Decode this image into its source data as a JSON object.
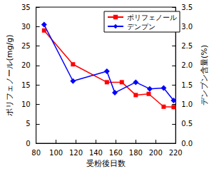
{
  "chart_data": {
    "type": "line",
    "x_label": "受粉後日数",
    "y_label": "ポリフェノール(mg/g)",
    "y2_label": "デンプン含量(%)",
    "xlim": [
      80,
      220
    ],
    "xticks": [
      80,
      100,
      120,
      140,
      160,
      180,
      200,
      220
    ],
    "ylim": [
      0,
      35
    ],
    "yticks": [
      0,
      5,
      10,
      15,
      20,
      25,
      30,
      35
    ],
    "y2lim": [
      0,
      3.5
    ],
    "y2ticks": [
      {
        "value": 0,
        "label": "0.0"
      },
      0.5,
      {
        "value": 1,
        "label": "1.0"
      },
      1.5,
      {
        "value": 2,
        "label": "2.0"
      },
      2.5,
      {
        "value": 3,
        "label": "3.0"
      },
      3.5
    ],
    "grid": false,
    "legend": "upper right",
    "series": [
      {
        "name": "ポリフェノール",
        "color": "#ff0000",
        "marker": "square",
        "axis": "y",
        "x": [
          88,
          117,
          151,
          166,
          180,
          193,
          208,
          218
        ],
        "values": [
          29,
          20.3,
          15.7,
          15.7,
          12.4,
          12.7,
          9.4,
          9.3
        ]
      },
      {
        "name": "デンプン",
        "color": "#0000ff",
        "marker": "diamond",
        "axis": "y2",
        "x": [
          88,
          117,
          151,
          159,
          180,
          194,
          208,
          218
        ],
        "values": [
          3.05,
          1.6,
          1.85,
          1.3,
          1.57,
          1.4,
          1.42,
          1.1
        ]
      }
    ]
  }
}
